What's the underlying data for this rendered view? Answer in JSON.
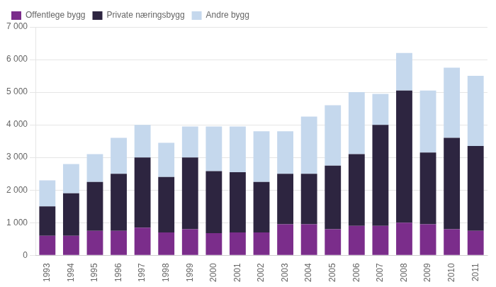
{
  "chart_data": {
    "type": "bar",
    "stacked": true,
    "categories": [
      "1993",
      "1994",
      "1995",
      "1996",
      "1997",
      "1998",
      "1999",
      "2000",
      "2001",
      "2002",
      "2003",
      "2004",
      "2005",
      "2006",
      "2007",
      "2008",
      "2009",
      "2010",
      "2011"
    ],
    "series": [
      {
        "name": "Offentlege bygg",
        "color": "#7b2d8b",
        "values": [
          600,
          600,
          750,
          750,
          850,
          700,
          800,
          680,
          700,
          700,
          950,
          950,
          800,
          900,
          900,
          1000,
          950,
          800,
          750
        ]
      },
      {
        "name": "Private næringsbygg",
        "color": "#2d2540",
        "values": [
          900,
          1300,
          1500,
          1750,
          2150,
          1700,
          2200,
          1900,
          1850,
          1550,
          1550,
          1550,
          1950,
          2200,
          3100,
          4050,
          2200,
          2800,
          2600
        ]
      },
      {
        "name": "Andre bygg",
        "color": "#c5d8ed",
        "values": [
          800,
          900,
          850,
          1100,
          1000,
          1050,
          950,
          1370,
          1400,
          1550,
          1300,
          1750,
          1850,
          1900,
          950,
          1150,
          1900,
          2150,
          2150
        ]
      }
    ],
    "ylim": [
      0,
      7000
    ],
    "yticks": [
      0,
      {
        "value": 1000,
        "label": "1 000"
      },
      {
        "value": 2000,
        "label": "2 000"
      },
      {
        "value": 3000,
        "label": "3 000"
      },
      {
        "value": 4000,
        "label": "4 000"
      },
      {
        "value": 5000,
        "label": "5 000"
      },
      {
        "value": 6000,
        "label": "6 000"
      },
      {
        "value": 7000,
        "label": "7 000"
      }
    ],
    "grid": true,
    "legend": "upper left"
  }
}
